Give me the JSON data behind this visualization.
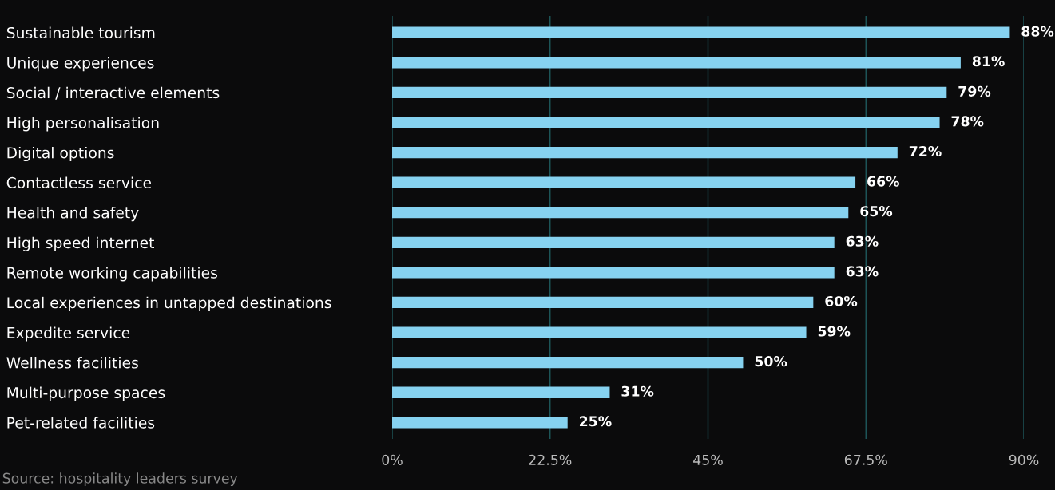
{
  "chart_data": {
    "type": "bar",
    "orientation": "horizontal",
    "categories": [
      "Sustainable tourism",
      "Unique experiences",
      "Social / interactive elements",
      "High personalisation",
      "Digital options",
      "Contactless service",
      "Health and safety",
      "High speed internet",
      "Remote working capabilities",
      "Local experiences in untapped destinations",
      "Expedite service",
      "Wellness facilities",
      "Multi-purpose spaces",
      "Pet-related facilities"
    ],
    "values": [
      88,
      81,
      79,
      78,
      72,
      66,
      65,
      63,
      63,
      60,
      59,
      50,
      31,
      25
    ],
    "value_labels": [
      "88%",
      "81%",
      "79%",
      "78%",
      "72%",
      "66%",
      "65%",
      "63%",
      "63%",
      "60%",
      "59%",
      "50%",
      "31%",
      "25%"
    ],
    "color": "#86d2f0",
    "xlim": [
      0,
      90
    ],
    "xticks": [
      {
        "value": 0,
        "label": "0%"
      },
      {
        "value": 22.5,
        "label": "22.5%"
      },
      {
        "value": 45,
        "label": "45%"
      },
      {
        "value": 67.5,
        "label": "67.5%"
      },
      {
        "value": 90,
        "label": "90%"
      }
    ],
    "grid": "x",
    "annotations": [
      "Source: hospitality leaders survey"
    ]
  }
}
